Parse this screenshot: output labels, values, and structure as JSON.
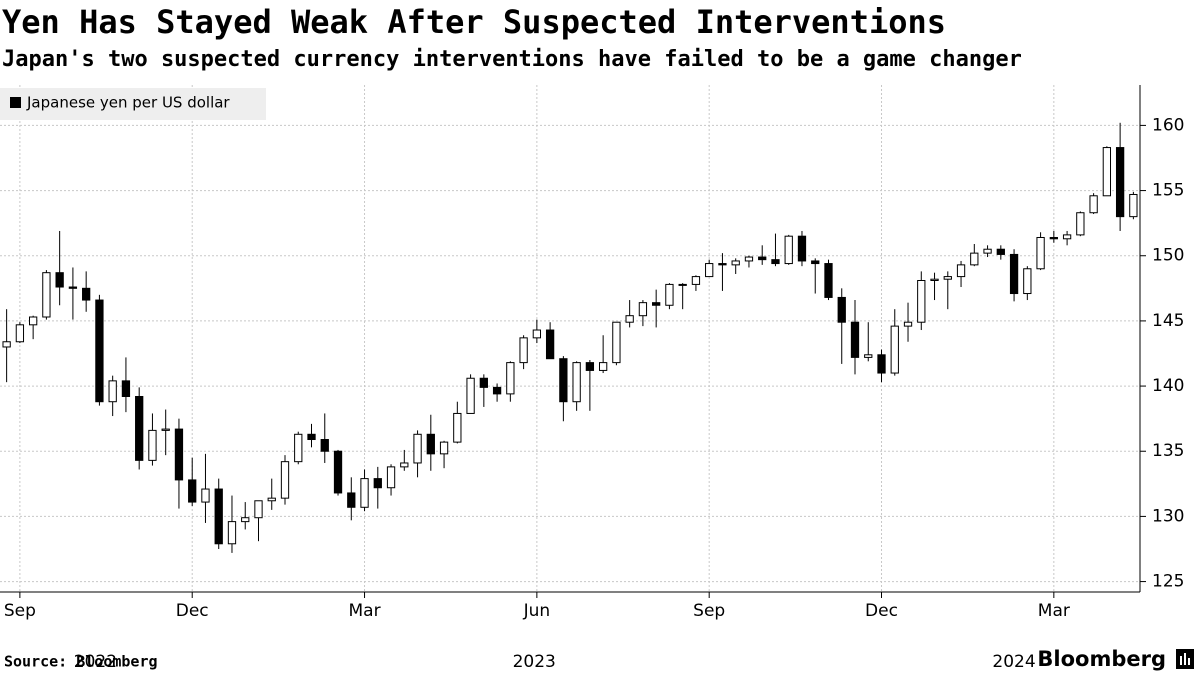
{
  "chart_data": {
    "type": "candlestick",
    "title": "Yen Has Stayed Weak After Suspected Interventions",
    "subtitle": "Japan's two suspected currency interventions have failed to be a game changer",
    "legend": "Japanese yen per US dollar",
    "source": "Source: Bloomberg",
    "brand": "Bloomberg",
    "up_color": "#ffffff",
    "down_color": "#000000",
    "edge_color": "#000000",
    "grid": true,
    "xlim": [
      -0.5,
      85.5
    ],
    "xticks": [
      {
        "value": 1,
        "label": "Sep"
      },
      {
        "value": 14,
        "label": "Dec"
      },
      {
        "value": 27,
        "label": "Mar"
      },
      {
        "value": 40,
        "label": "Jun"
      },
      {
        "value": 53,
        "label": "Sep"
      },
      {
        "value": 66,
        "label": "Dec"
      },
      {
        "value": 79,
        "label": "Mar"
      }
    ],
    "xtick_years": [
      {
        "value": 6.7,
        "label": "2022"
      },
      {
        "value": 39.8,
        "label": "2023"
      },
      {
        "value": 76,
        "label": "2024"
      }
    ],
    "ylim": [
      124.2,
      163.1
    ],
    "yticks": [
      125,
      130,
      135,
      140,
      145,
      150,
      155,
      160
    ],
    "open": [
      143.0,
      143.4,
      144.7,
      145.3,
      148.7,
      147.6,
      147.5,
      146.6,
      138.8,
      140.4,
      139.2,
      134.3,
      136.6,
      136.7,
      132.8,
      131.1,
      132.1,
      127.9,
      129.6,
      129.9,
      131.2,
      131.4,
      134.2,
      136.3,
      135.9,
      135.0,
      131.8,
      130.7,
      132.9,
      132.2,
      133.8,
      134.1,
      136.3,
      134.8,
      135.7,
      137.9,
      140.6,
      139.9,
      139.4,
      141.8,
      143.7,
      144.3,
      142.1,
      138.8,
      141.8,
      141.2,
      141.8,
      144.9,
      145.4,
      146.4,
      146.2,
      147.8,
      147.8,
      148.4,
      149.4,
      149.3,
      149.6,
      149.9,
      149.7,
      149.4,
      151.5,
      149.6,
      149.4,
      146.8,
      144.9,
      142.2,
      142.4,
      141.0,
      144.6,
      144.9,
      148.1,
      148.2,
      148.4,
      149.3,
      150.2,
      150.5,
      150.1,
      147.1,
      149.0,
      151.4,
      151.3,
      151.6,
      153.3,
      154.6,
      158.3,
      153.0
    ],
    "high": [
      145.9,
      144.9,
      145.4,
      148.9,
      151.9,
      149.1,
      148.8,
      147.0,
      140.8,
      142.2,
      139.9,
      137.9,
      138.2,
      137.5,
      134.5,
      134.8,
      132.9,
      131.6,
      131.1,
      131.2,
      132.9,
      134.7,
      136.5,
      137.1,
      137.9,
      135.1,
      133.0,
      133.6,
      133.8,
      134.0,
      135.1,
      136.6,
      137.8,
      135.8,
      138.8,
      140.9,
      140.9,
      140.2,
      141.9,
      143.9,
      145.1,
      144.9,
      142.3,
      141.9,
      142.0,
      143.9,
      144.9,
      146.6,
      146.6,
      147.4,
      147.9,
      147.9,
      148.5,
      149.7,
      150.2,
      149.8,
      150.0,
      150.8,
      151.7,
      151.6,
      151.9,
      149.8,
      149.7,
      147.5,
      146.6,
      144.9,
      142.8,
      145.9,
      146.4,
      148.8,
      148.7,
      148.8,
      149.6,
      150.9,
      150.8,
      150.8,
      150.5,
      149.2,
      151.8,
      151.9,
      151.9,
      153.4,
      154.8,
      158.4,
      160.2,
      154.9
    ],
    "low": [
      140.3,
      143.3,
      143.6,
      145.1,
      146.2,
      145.1,
      145.7,
      138.5,
      137.7,
      138.0,
      133.6,
      133.9,
      134.7,
      130.6,
      130.8,
      129.5,
      127.5,
      127.2,
      129.0,
      128.1,
      130.5,
      130.9,
      134.0,
      135.3,
      134.1,
      131.6,
      129.7,
      130.4,
      130.6,
      131.6,
      133.5,
      133.0,
      133.5,
      133.7,
      135.6,
      137.9,
      138.4,
      138.8,
      138.8,
      141.3,
      143.3,
      142.1,
      137.3,
      138.1,
      138.1,
      141.0,
      141.6,
      144.5,
      144.6,
      144.5,
      145.9,
      145.9,
      147.3,
      148.4,
      147.3,
      148.6,
      149.1,
      149.3,
      149.2,
      149.3,
      149.2,
      147.1,
      146.6,
      141.7,
      140.9,
      141.9,
      140.3,
      140.8,
      143.4,
      144.3,
      146.6,
      145.9,
      147.6,
      149.2,
      149.9,
      149.7,
      146.5,
      146.6,
      148.9,
      151.0,
      150.8,
      151.5,
      153.2,
      154.6,
      151.9,
      152.8
    ],
    "close": [
      143.4,
      144.7,
      145.3,
      148.7,
      147.6,
      147.5,
      146.6,
      138.8,
      140.4,
      139.2,
      134.3,
      136.6,
      136.7,
      132.8,
      131.1,
      132.1,
      127.9,
      129.6,
      129.9,
      131.2,
      131.4,
      134.2,
      136.3,
      135.9,
      135.0,
      131.8,
      130.7,
      132.9,
      132.2,
      133.8,
      134.1,
      136.3,
      134.8,
      135.7,
      137.9,
      140.6,
      139.9,
      139.4,
      141.8,
      143.7,
      144.3,
      142.1,
      138.8,
      141.8,
      141.2,
      141.8,
      144.9,
      145.4,
      146.4,
      146.2,
      147.8,
      147.8,
      148.4,
      149.4,
      149.3,
      149.6,
      149.9,
      149.7,
      149.4,
      151.5,
      149.6,
      149.4,
      146.8,
      144.9,
      142.2,
      142.4,
      141.0,
      144.6,
      144.9,
      148.1,
      148.2,
      148.4,
      149.3,
      150.2,
      150.5,
      150.1,
      147.1,
      149.0,
      151.4,
      151.3,
      151.6,
      153.3,
      154.6,
      158.3,
      153.0,
      154.7
    ]
  }
}
